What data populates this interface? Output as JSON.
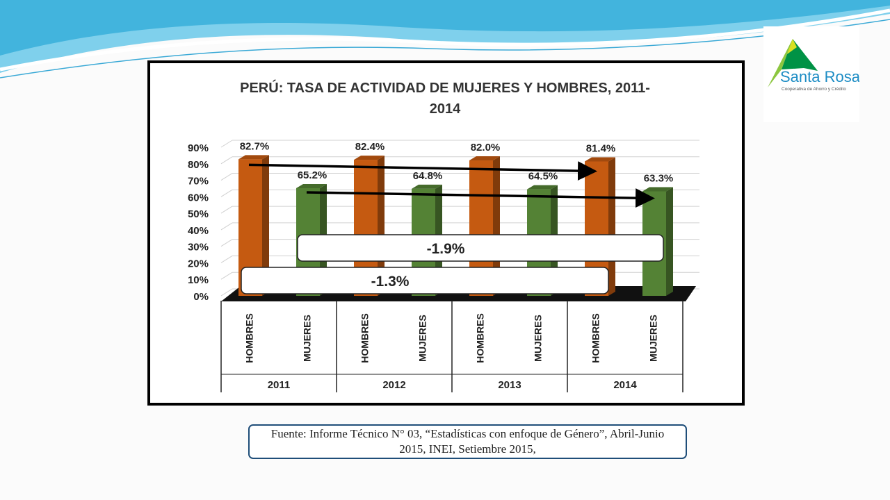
{
  "header": {
    "logo_name": "Santa Rosa",
    "logo_tagline": "Cooperativa de Ahorro y Crédito"
  },
  "colors": {
    "hombres": "#c55a11",
    "mujeres": "#548235",
    "accent": "#1f4e79"
  },
  "chart_data": {
    "type": "bar",
    "title": "PERÚ: TASA DE ACTIVIDAD DE MUJERES Y HOMBRES, 2011-2014",
    "title_lines": [
      "PERÚ: TASA DE ACTIVIDAD DE MUJERES Y HOMBRES, 2011-",
      "2014"
    ],
    "groups": [
      "2011",
      "2012",
      "2013",
      "2014"
    ],
    "series_labels": [
      "HOMBRES",
      "MUJERES"
    ],
    "values": {
      "HOMBRES": [
        82.7,
        82.4,
        82.0,
        81.4
      ],
      "MUJERES": [
        65.2,
        64.8,
        64.5,
        63.3
      ]
    },
    "value_labels": {
      "HOMBRES": [
        "82.7%",
        "82.4%",
        "82.0%",
        "81.4%"
      ],
      "MUJERES": [
        "65.2%",
        "64.8%",
        "64.5%",
        "63.3%"
      ]
    },
    "y_ticks": [
      "0%",
      "10%",
      "20%",
      "30%",
      "40%",
      "50%",
      "60%",
      "70%",
      "80%",
      "90%"
    ],
    "ylim": [
      0,
      90
    ],
    "grid": true,
    "annotations": [
      {
        "label": "-1.9%",
        "series": "MUJERES"
      },
      {
        "label": "-1.3%",
        "series": "HOMBRES"
      }
    ]
  },
  "source": {
    "text": "Fuente: Informe Técnico N° 03, “Estadísticas con enfoque de Género”, Abril-Junio 2015, INEI, Setiembre 2015,"
  }
}
